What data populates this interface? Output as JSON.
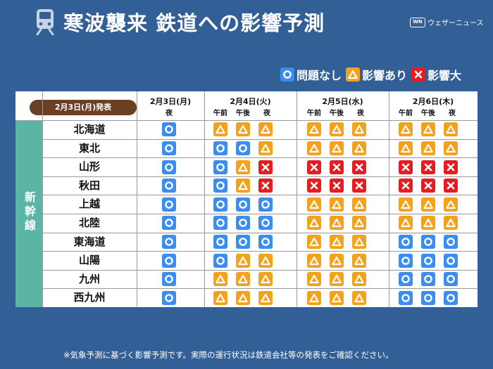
{
  "header": {
    "title": "寒波襲来 鉄道への影響予測",
    "brand": "ウェザーニュース",
    "brand_logo": "WN",
    "icon": "train-icon"
  },
  "legend": [
    {
      "status": "ok",
      "label": "問題なし"
    },
    {
      "status": "warn",
      "label": "影響あり"
    },
    {
      "status": "bad",
      "label": "影響大"
    }
  ],
  "colors": {
    "background": "#325f95",
    "ok": "#3b8df0",
    "warn": "#f4a11c",
    "bad": "#e51c20",
    "group_band": "#5ab5a5",
    "issued_badge": "#6b3f22"
  },
  "table": {
    "issued": "2月3日(月)発表",
    "group": "新幹線",
    "days": [
      {
        "label": "2月3日(月)",
        "periods": [
          "夜"
        ]
      },
      {
        "label": "2月4日(火)",
        "periods": [
          "午前",
          "午後",
          "夜"
        ]
      },
      {
        "label": "2月5日(水)",
        "periods": [
          "午前",
          "午後",
          "夜"
        ]
      },
      {
        "label": "2月6日(木)",
        "periods": [
          "午前",
          "午後",
          "夜"
        ]
      }
    ],
    "lines": [
      {
        "name": "北海道",
        "status": [
          "ok",
          "warn",
          "warn",
          "warn",
          "warn",
          "warn",
          "warn",
          "warn",
          "warn",
          "warn"
        ]
      },
      {
        "name": "東北",
        "status": [
          "ok",
          "ok",
          "ok",
          "warn",
          "warn",
          "warn",
          "warn",
          "warn",
          "warn",
          "warn"
        ]
      },
      {
        "name": "山形",
        "status": [
          "ok",
          "ok",
          "warn",
          "bad",
          "bad",
          "bad",
          "bad",
          "bad",
          "bad",
          "bad"
        ]
      },
      {
        "name": "秋田",
        "status": [
          "ok",
          "ok",
          "warn",
          "bad",
          "bad",
          "bad",
          "bad",
          "bad",
          "bad",
          "bad"
        ]
      },
      {
        "name": "上越",
        "status": [
          "ok",
          "ok",
          "ok",
          "ok",
          "warn",
          "warn",
          "warn",
          "warn",
          "warn",
          "warn"
        ]
      },
      {
        "name": "北陸",
        "status": [
          "ok",
          "ok",
          "ok",
          "ok",
          "warn",
          "warn",
          "warn",
          "warn",
          "warn",
          "warn"
        ]
      },
      {
        "name": "東海道",
        "status": [
          "ok",
          "ok",
          "ok",
          "ok",
          "warn",
          "warn",
          "warn",
          "ok",
          "ok",
          "ok"
        ]
      },
      {
        "name": "山陽",
        "status": [
          "ok",
          "ok",
          "warn",
          "warn",
          "warn",
          "warn",
          "warn",
          "ok",
          "ok",
          "ok"
        ]
      },
      {
        "name": "九州",
        "status": [
          "ok",
          "warn",
          "warn",
          "warn",
          "warn",
          "warn",
          "warn",
          "ok",
          "ok",
          "ok"
        ]
      },
      {
        "name": "西九州",
        "status": [
          "ok",
          "warn",
          "warn",
          "warn",
          "warn",
          "warn",
          "warn",
          "ok",
          "ok",
          "ok"
        ]
      }
    ]
  },
  "footnote": "※気象予測に基づく影響予測です。実際の運行状況は鉄道会社等の発表をご確認ください。"
}
